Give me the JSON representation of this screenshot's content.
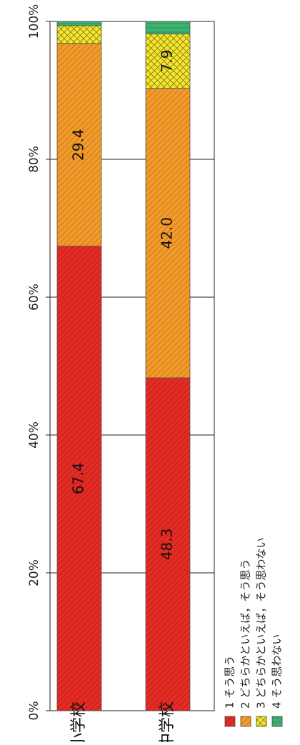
{
  "chart_data": {
    "type": "bar",
    "orientation": "horizontal-stacked-100",
    "rotated": "90deg-counterclockwise",
    "categories": [
      "小学校",
      "中学校"
    ],
    "series": [
      {
        "name": "1 そう思う",
        "color": "#e52b23",
        "values": [
          67.4,
          48.3
        ],
        "labels": [
          "67.4",
          "48.3"
        ]
      },
      {
        "name": "2 どちらかといえば，そう思う",
        "color": "#f39a2a",
        "values": [
          29.4,
          42.0
        ],
        "labels": [
          "29.4",
          "42.0"
        ]
      },
      {
        "name": "3 どちらかといえば，そう思わない",
        "color": "#f5e62d",
        "values": [
          2.6,
          7.9
        ],
        "labels": [
          "",
          "7.9"
        ]
      },
      {
        "name": "4 そう思わない",
        "color": "#3cb371",
        "values": [
          0.6,
          1.8
        ],
        "labels": [
          "",
          ""
        ]
      }
    ],
    "value_axis": {
      "ticks": [
        "0%",
        "20%",
        "40%",
        "60%",
        "80%",
        "100%"
      ],
      "tick_values": [
        0,
        20,
        40,
        60,
        80,
        100
      ],
      "range": [
        0,
        100
      ]
    },
    "grid": true,
    "legend_position": "bottom-right"
  }
}
